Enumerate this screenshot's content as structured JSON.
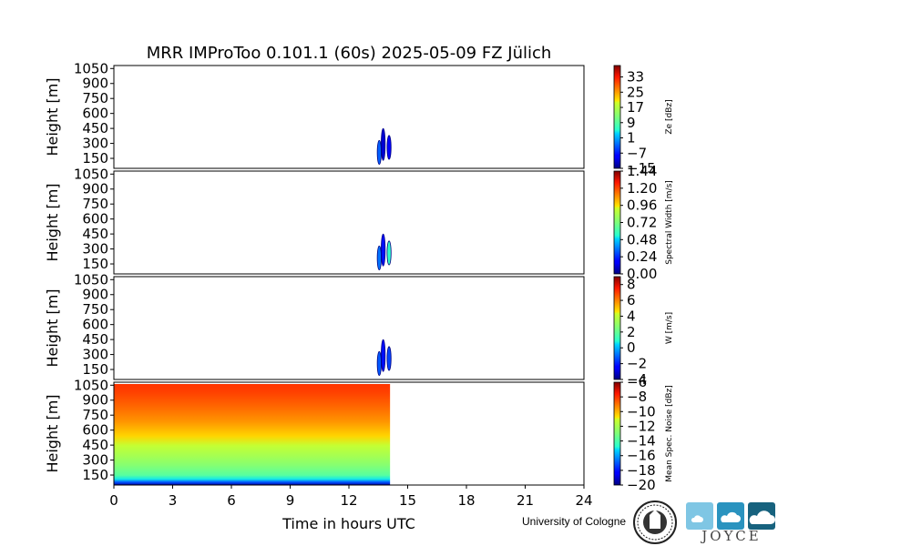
{
  "chart_data": {
    "type": "heatmap",
    "title": "MRR IMProToo 0.101.1 (60s) 2025-05-09 FZ Jülich",
    "xlabel": "Time in hours UTC",
    "xlim": [
      0,
      24
    ],
    "xticks": [
      0,
      3,
      6,
      9,
      12,
      15,
      18,
      21,
      24
    ],
    "panels": [
      {
        "name": "ze",
        "ylabel": "Height [m]",
        "ylim": [
          50,
          1080
        ],
        "yticks": [
          150,
          300,
          450,
          600,
          750,
          900,
          1050
        ],
        "colorbar_label": "Ze [dBz]",
        "colorbar_range": [
          -15,
          39
        ],
        "colorbar_ticks": [
          "−15",
          "−7",
          "1",
          "9",
          "17",
          "25",
          "33"
        ],
        "colorbar_ticks_values": [
          -15,
          -7,
          1,
          9,
          17,
          25,
          33
        ],
        "echoes": [
          {
            "t": 13.55,
            "h_min": 90,
            "h_max": 330,
            "value": -3
          },
          {
            "t": 13.75,
            "h_min": 130,
            "h_max": 450,
            "value": -11
          },
          {
            "t": 14.05,
            "h_min": 140,
            "h_max": 380,
            "value": -9
          }
        ]
      },
      {
        "name": "spectral-width",
        "ylabel": "Height [m]",
        "ylim": [
          50,
          1080
        ],
        "yticks": [
          150,
          300,
          450,
          600,
          750,
          900,
          1050
        ],
        "colorbar_label": "Spectral Width [m/s]",
        "colorbar_range": [
          0,
          1.44
        ],
        "colorbar_ticks": [
          "0.00",
          "0.24",
          "0.48",
          "0.72",
          "0.96",
          "1.20",
          "1.44"
        ],
        "colorbar_ticks_values": [
          0,
          0.24,
          0.48,
          0.72,
          0.96,
          1.2,
          1.44
        ],
        "echoes": [
          {
            "t": 13.55,
            "h_min": 90,
            "h_max": 330,
            "value": 0.35
          },
          {
            "t": 13.75,
            "h_min": 130,
            "h_max": 450,
            "value": 0.2
          },
          {
            "t": 14.05,
            "h_min": 140,
            "h_max": 380,
            "value": 0.55
          }
        ]
      },
      {
        "name": "w",
        "ylabel": "Height [m]",
        "ylim": [
          50,
          1080
        ],
        "yticks": [
          150,
          300,
          450,
          600,
          750,
          900,
          1050
        ],
        "colorbar_label": "W [m/s]",
        "colorbar_range": [
          -4,
          9
        ],
        "colorbar_ticks": [
          "−4",
          "−2",
          "0",
          "2",
          "4",
          "6",
          "8"
        ],
        "colorbar_ticks_values": [
          -4,
          -2,
          0,
          2,
          4,
          6,
          8
        ],
        "echoes": [
          {
            "t": 13.55,
            "h_min": 90,
            "h_max": 330,
            "value": -1.2
          },
          {
            "t": 13.75,
            "h_min": 130,
            "h_max": 450,
            "value": -2.2
          },
          {
            "t": 14.05,
            "h_min": 140,
            "h_max": 380,
            "value": -1.5
          }
        ]
      },
      {
        "name": "mean-spectral-noise",
        "ylabel": "Height [m]",
        "ylim": [
          50,
          1080
        ],
        "yticks": [
          150,
          300,
          450,
          600,
          750,
          900,
          1050
        ],
        "colorbar_label": "Mean Spec. Noise [dBz]",
        "colorbar_range": [
          -20,
          -6
        ],
        "colorbar_ticks": [
          "−20",
          "−18",
          "−16",
          "−14",
          "−12",
          "−10",
          "−8",
          "−6"
        ],
        "colorbar_ticks_values": [
          -20,
          -18,
          -16,
          -14,
          -12,
          -10,
          -8,
          -6
        ],
        "data_time_range": [
          0,
          14.1
        ],
        "noise_profile": [
          {
            "h": 50,
            "value": -19.5
          },
          {
            "h": 80,
            "value": -17
          },
          {
            "h": 110,
            "value": -15
          },
          {
            "h": 150,
            "value": -13.8
          },
          {
            "h": 250,
            "value": -12.8
          },
          {
            "h": 350,
            "value": -12
          },
          {
            "h": 450,
            "value": -11.3
          },
          {
            "h": 550,
            "value": -10.5
          },
          {
            "h": 700,
            "value": -9.5
          },
          {
            "h": 850,
            "value": -8.8
          },
          {
            "h": 1000,
            "value": -8.2
          },
          {
            "h": 1080,
            "value": -8
          }
        ]
      }
    ]
  },
  "footer": {
    "institution": "University of Cologne",
    "logo_text": "JOYCE",
    "colors": {
      "logo_light": "#7fc6e4",
      "logo_mid": "#2a93bf",
      "logo_dark": "#17627e"
    }
  }
}
